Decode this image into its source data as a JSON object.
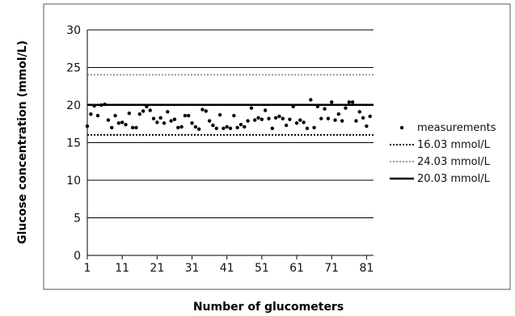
{
  "chart_data": {
    "type": "scatter",
    "title": "",
    "xlabel": "Number of glucometers",
    "ylabel": "Glucose concentration (mmol/L)",
    "xlim": [
      1,
      83
    ],
    "ylim": [
      0,
      30
    ],
    "x_ticks": [
      "1",
      "11",
      "21",
      "31",
      "41",
      "51",
      "61",
      "71",
      "81"
    ],
    "y_ticks": [
      "0",
      "5",
      "10",
      "15",
      "20",
      "25",
      "30"
    ],
    "grid": "horizontal",
    "legend_position": "right",
    "series": [
      {
        "name": "measurements",
        "kind": "points",
        "color": "#000000",
        "x": [
          1,
          2,
          3,
          4,
          5,
          6,
          7,
          8,
          9,
          10,
          11,
          12,
          13,
          14,
          15,
          16,
          17,
          18,
          19,
          20,
          21,
          22,
          23,
          24,
          25,
          26,
          27,
          28,
          29,
          30,
          31,
          32,
          33,
          34,
          35,
          36,
          37,
          38,
          39,
          40,
          41,
          42,
          43,
          44,
          45,
          46,
          47,
          48,
          49,
          50,
          51,
          52,
          53,
          54,
          55,
          56,
          57,
          58,
          59,
          60,
          61,
          62,
          63,
          64,
          65,
          66,
          67,
          68,
          69,
          70,
          71,
          72,
          73,
          74,
          75,
          76,
          77,
          78,
          79,
          80,
          81,
          82
        ],
        "y": [
          17.2,
          18.8,
          19.9,
          18.6,
          20,
          20.1,
          18,
          17,
          18.6,
          17.6,
          17.7,
          17.4,
          18.9,
          17,
          17,
          18.8,
          19.2,
          19.8,
          19.3,
          18.2,
          17.7,
          18.3,
          17.6,
          19.1,
          17.9,
          18.1,
          17,
          17.1,
          18.6,
          18.6,
          17.6,
          17.1,
          16.8,
          19.4,
          19.2,
          17.9,
          17.3,
          16.9,
          18.7,
          16.9,
          17.1,
          16.9,
          18.6,
          17,
          17.4,
          17.1,
          17.9,
          19.6,
          18,
          18.3,
          18.1,
          19.3,
          18.2,
          16.9,
          18.3,
          18.5,
          18.2,
          17.3,
          18.1,
          19.8,
          17.6,
          18,
          17.7,
          16.9,
          20.7,
          17,
          19.8,
          18.2,
          19.5,
          18.2,
          20.4,
          18,
          18.8,
          17.9,
          19.6,
          20.4,
          20.4,
          17.9,
          19.1,
          18.3,
          17.2,
          18.5
        ]
      },
      {
        "name": "16.03 mmol/L",
        "kind": "reference",
        "value": 16.03,
        "color": "#000000",
        "style": "dotted"
      },
      {
        "name": "24.03 mmol/L",
        "kind": "reference",
        "value": 24.03,
        "color": "#9a9a9a",
        "style": "dotted"
      },
      {
        "name": "20.03 mmol/L",
        "kind": "reference",
        "value": 20.03,
        "color": "#000000",
        "style": "solid"
      }
    ]
  }
}
